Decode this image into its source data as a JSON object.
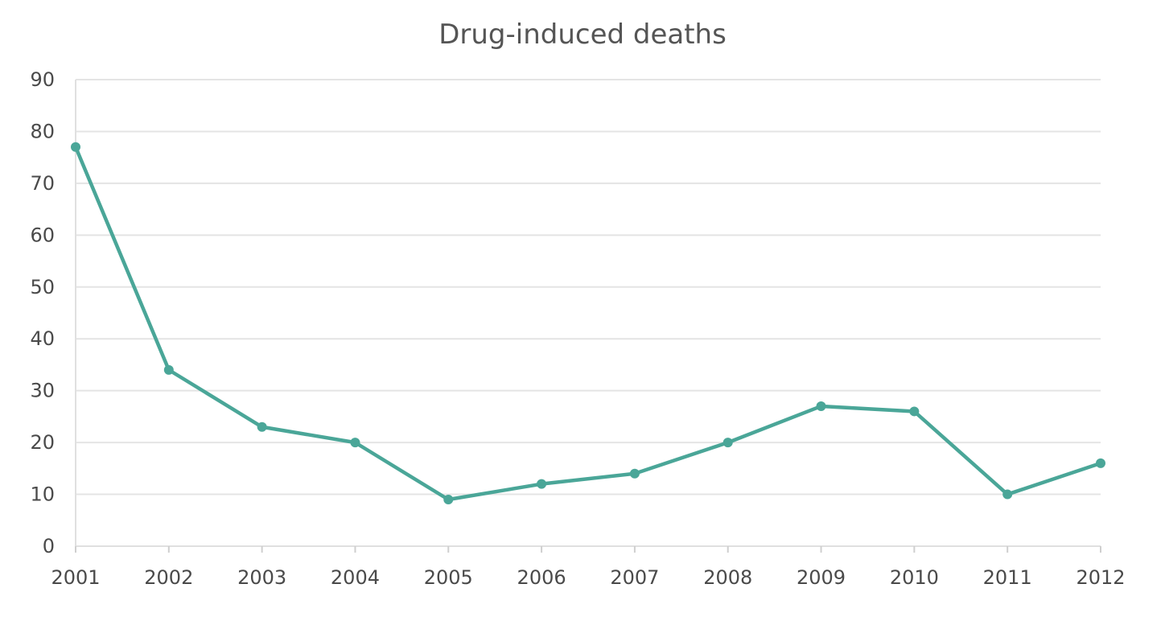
{
  "chart_data": {
    "type": "line",
    "title": "Drug-induced deaths",
    "xlabel": "",
    "ylabel": "",
    "categories": [
      "2001",
      "2002",
      "2003",
      "2004",
      "2005",
      "2006",
      "2007",
      "2008",
      "2009",
      "2010",
      "2011",
      "2012"
    ],
    "series": [
      {
        "values": [
          77,
          34,
          23,
          20,
          9,
          12,
          14,
          20,
          27,
          26,
          10,
          16
        ],
        "color": "#4aa698"
      }
    ],
    "ylim": [
      0,
      90
    ],
    "yticks": [
      "0",
      "10",
      "20",
      "30",
      "40",
      "50",
      "60",
      "70",
      "80",
      "90"
    ],
    "grid": true,
    "legend": "none"
  }
}
